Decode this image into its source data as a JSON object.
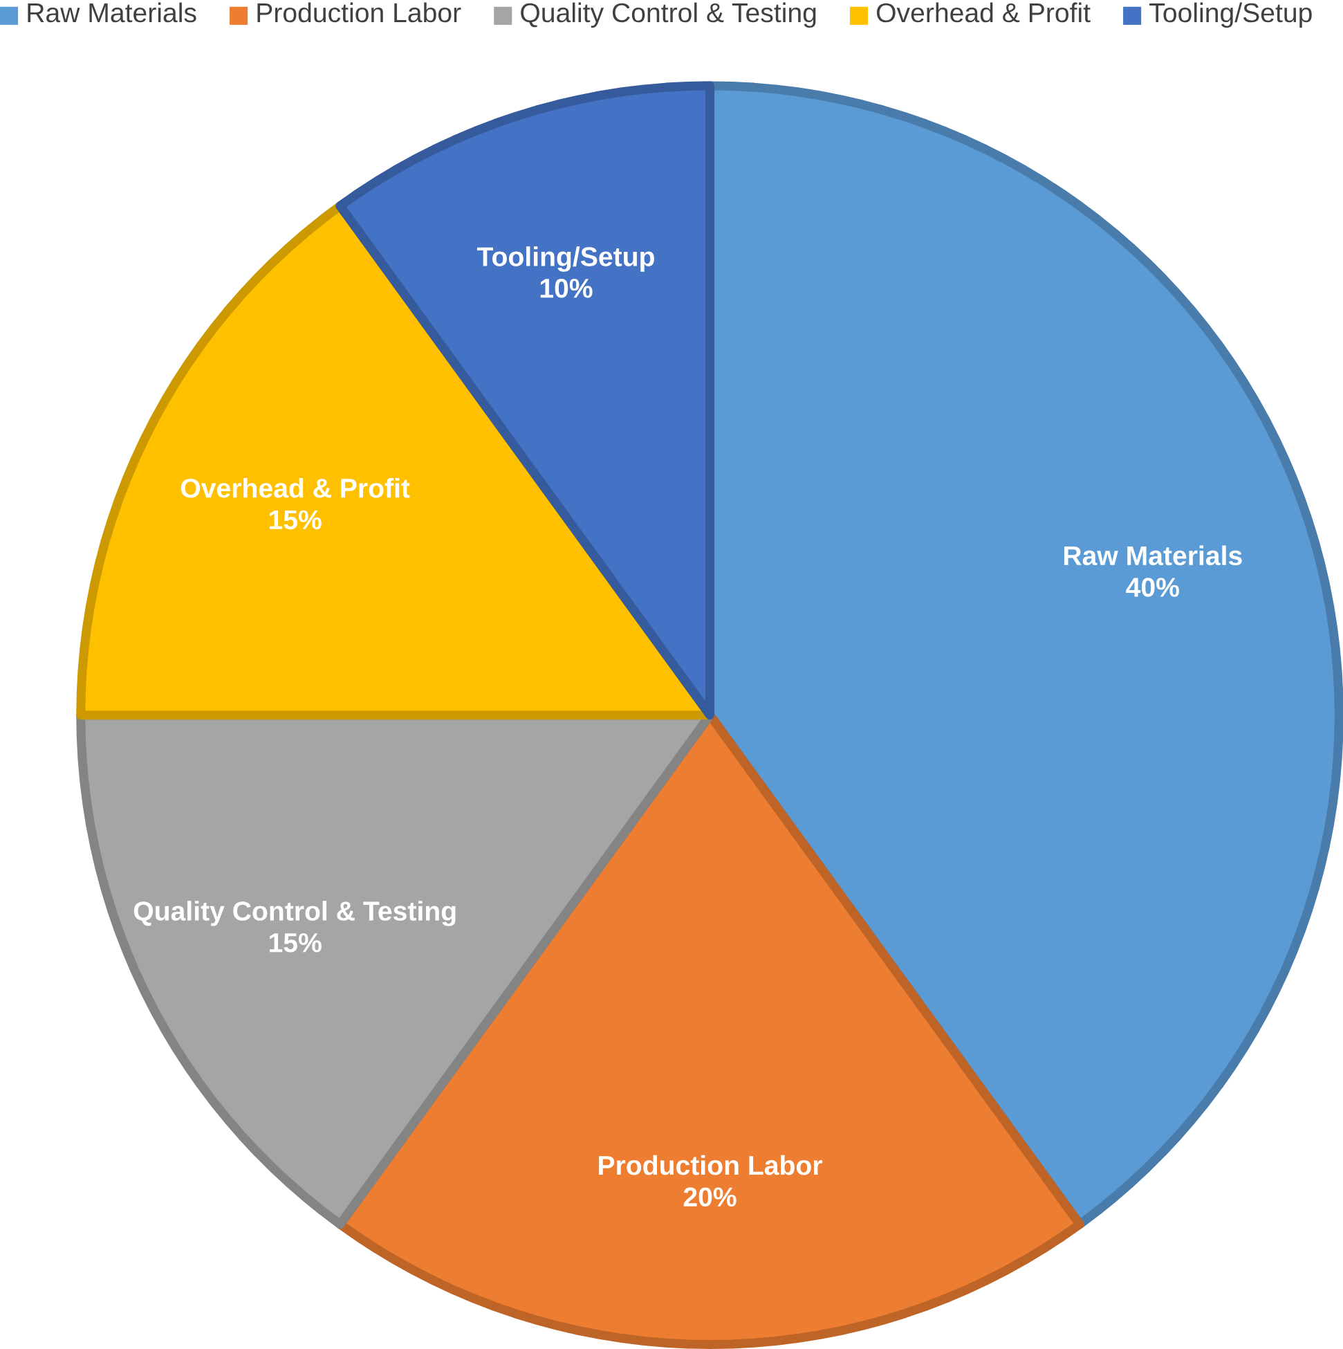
{
  "chart_data": {
    "type": "pie",
    "categories": [
      "Raw Materials",
      "Production Labor",
      "Quality Control & Testing",
      "Overhead & Profit",
      "Tooling/Setup"
    ],
    "values": [
      40,
      20,
      15,
      15,
      10
    ],
    "value_labels": [
      "40%",
      "20%",
      "15%",
      "15%",
      "10%"
    ],
    "colors": [
      "#5b9bd5",
      "#ed7d31",
      "#a5a5a5",
      "#ffc000",
      "#4472c4"
    ],
    "legend": "top"
  }
}
